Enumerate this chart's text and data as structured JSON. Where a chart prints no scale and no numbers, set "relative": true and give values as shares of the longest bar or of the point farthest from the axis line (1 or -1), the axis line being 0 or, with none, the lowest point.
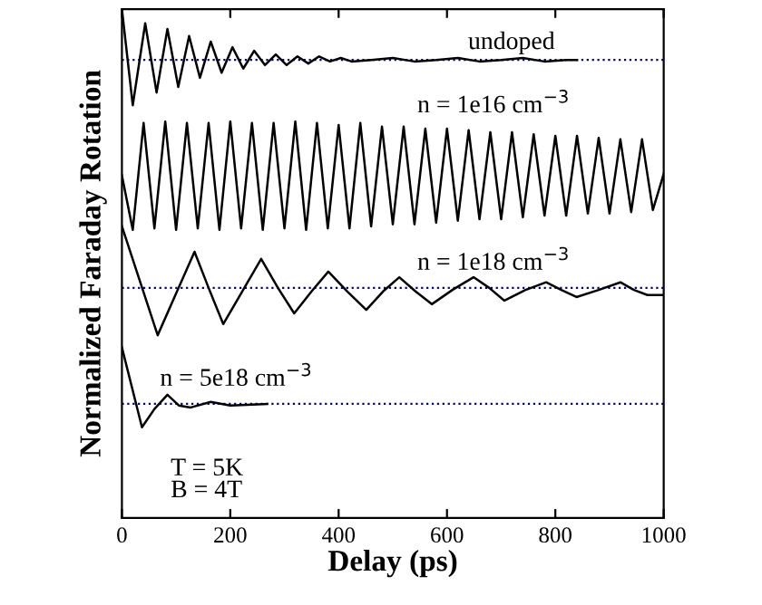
{
  "chart_data": {
    "type": "line",
    "relative": true,
    "xlabel": "Delay (ps)",
    "ylabel": "Normalized Faraday Rotation",
    "xlim": [
      0,
      1000
    ],
    "xticks": [
      0,
      200,
      400,
      600,
      800,
      1000
    ],
    "tick_labels": "x",
    "grid": false,
    "legend": false,
    "marker": "none",
    "line_style": "solid",
    "series": [
      {
        "color": "#000000",
        "x": [
          0,
          20,
          43,
          64,
          84,
          104,
          124,
          144,
          164,
          184,
          204,
          224,
          244,
          264,
          284,
          304,
          324,
          344,
          364,
          384,
          404,
          424,
          460,
          500,
          540,
          580,
          620,
          660,
          700,
          740,
          780,
          820,
          840
        ],
        "values": [
          1.0,
          0.811,
          0.972,
          0.836,
          0.961,
          0.847,
          0.947,
          0.865,
          0.936,
          0.875,
          0.925,
          0.883,
          0.918,
          0.89,
          0.911,
          0.89,
          0.907,
          0.893,
          0.907,
          0.897,
          0.904,
          0.897,
          0.9,
          0.904,
          0.897,
          0.9,
          0.904,
          0.897,
          0.9,
          0.904,
          0.897,
          0.9,
          0.9
        ]
      },
      {
        "color": "#000000",
        "x": [
          0,
          20,
          40,
          60,
          80,
          100,
          120,
          140,
          160,
          180,
          200,
          220,
          240,
          260,
          280,
          300,
          320,
          340,
          360,
          380,
          400,
          420,
          440,
          460,
          480,
          500,
          520,
          540,
          560,
          580,
          600,
          620,
          640,
          660,
          680,
          700,
          720,
          740,
          760,
          780,
          800,
          820,
          840,
          860,
          880,
          900,
          920,
          940,
          960,
          980,
          1000
        ],
        "values": [
          0.673,
          0.566,
          0.776,
          0.569,
          0.779,
          0.566,
          0.776,
          0.569,
          0.776,
          0.566,
          0.779,
          0.569,
          0.776,
          0.566,
          0.776,
          0.569,
          0.779,
          0.566,
          0.776,
          0.569,
          0.772,
          0.569,
          0.776,
          0.573,
          0.769,
          0.577,
          0.769,
          0.577,
          0.765,
          0.58,
          0.765,
          0.584,
          0.762,
          0.587,
          0.758,
          0.587,
          0.758,
          0.591,
          0.754,
          0.594,
          0.751,
          0.594,
          0.751,
          0.598,
          0.747,
          0.598,
          0.744,
          0.601,
          0.744,
          0.605,
          0.676
        ]
      },
      {
        "color": "#000000",
        "x": [
          0,
          66,
          100,
          134,
          160,
          187,
          222,
          257,
          288,
          318,
          350,
          381,
          416,
          451,
          482,
          512,
          542,
          572,
          610,
          649,
          678,
          706,
          745,
          783,
          811,
          839,
          880,
          920,
          945,
          970,
          1000
        ],
        "values": [
          0.573,
          0.359,
          0.441,
          0.523,
          0.452,
          0.381,
          0.445,
          0.509,
          0.452,
          0.402,
          0.445,
          0.484,
          0.445,
          0.409,
          0.445,
          0.473,
          0.445,
          0.42,
          0.448,
          0.473,
          0.452,
          0.427,
          0.448,
          0.463,
          0.448,
          0.434,
          0.448,
          0.463,
          0.448,
          0.438,
          0.438
        ]
      },
      {
        "color": "#000000",
        "x": [
          0,
          37,
          60,
          84,
          105,
          127,
          164,
          200,
          268
        ],
        "values": [
          0.335,
          0.178,
          0.214,
          0.242,
          0.221,
          0.217,
          0.228,
          0.221,
          0.224
        ]
      }
    ],
    "ref_lines": [
      {
        "axis": "y",
        "value": 0.9,
        "color": "#000080",
        "line_style": "dotted"
      },
      {
        "axis": "y",
        "value": 0.452,
        "color": "#000080",
        "line_style": "dotted"
      },
      {
        "axis": "y",
        "value": 0.224,
        "color": "#000080",
        "line_style": "dotted"
      }
    ],
    "annotations": [
      {
        "text": "undoped",
        "x": 719,
        "y": 0.911
      },
      "n = 1e16 cm$^{−3}$",
      "n = 1e18 cm$^{−3}$",
      "n = 5e18 cm$^{−3}$",
      "T = 5K\nB = 4T"
    ]
  }
}
